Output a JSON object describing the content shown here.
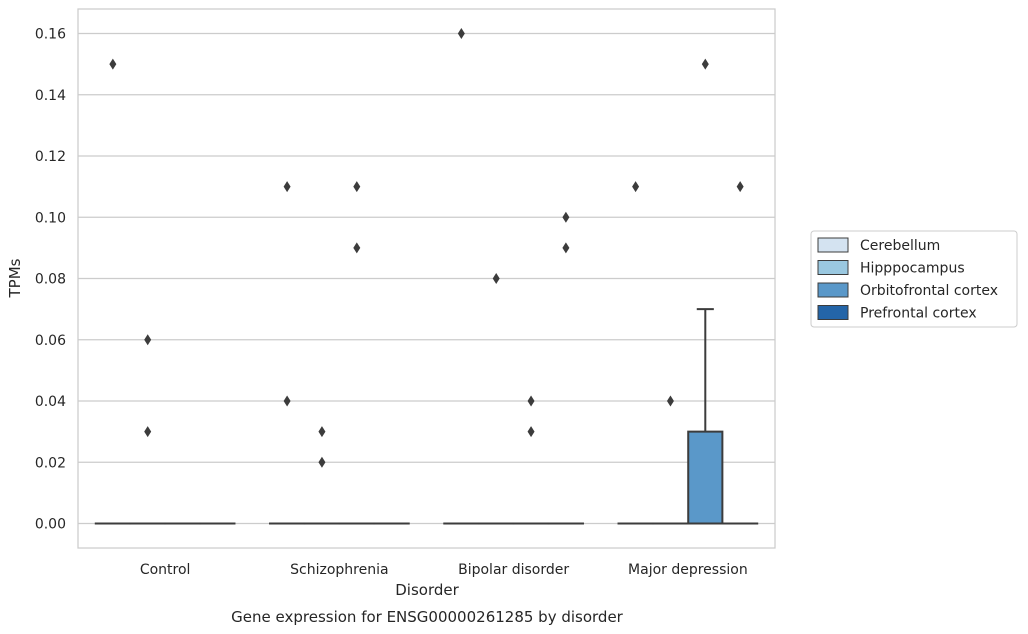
{
  "chart_data": {
    "type": "box",
    "xlabel": "Disorder",
    "ylabel": "TPMs",
    "caption": "Gene expression for ENSG00000261285 by disorder",
    "categories": [
      "Control",
      "Schizophrenia",
      "Bipolar disorder",
      "Major depression"
    ],
    "ylim": [
      -0.008,
      0.168
    ],
    "yticks": [
      0.0,
      0.02,
      0.04,
      0.06,
      0.08,
      0.1,
      0.12,
      0.14,
      0.16
    ],
    "ytick_labels": [
      "0.00",
      "0.02",
      "0.04",
      "0.06",
      "0.08",
      "0.10",
      "0.12",
      "0.14",
      "0.16"
    ],
    "grid": "horizontal",
    "legend_position": "right",
    "series": [
      {
        "name": "Cerebellum",
        "color": "#d4e3f1",
        "boxes": [
          {
            "q1": 0,
            "median": 0,
            "q3": 0,
            "whisker_low": 0,
            "whisker_high": 0,
            "outliers": [
              0.15
            ]
          },
          {
            "q1": 0,
            "median": 0,
            "q3": 0,
            "whisker_low": 0,
            "whisker_high": 0,
            "outliers": [
              0.11,
              0.04
            ]
          },
          {
            "q1": 0,
            "median": 0,
            "q3": 0,
            "whisker_low": 0,
            "whisker_high": 0,
            "outliers": [
              0.16
            ]
          },
          {
            "q1": 0,
            "median": 0,
            "q3": 0,
            "whisker_low": 0,
            "whisker_high": 0,
            "outliers": [
              0.11
            ]
          }
        ]
      },
      {
        "name": "Hipppocampus",
        "color": "#9ac8e0",
        "boxes": [
          {
            "q1": 0,
            "median": 0,
            "q3": 0,
            "whisker_low": 0,
            "whisker_high": 0,
            "outliers": [
              0.06,
              0.03
            ]
          },
          {
            "q1": 0,
            "median": 0,
            "q3": 0,
            "whisker_low": 0,
            "whisker_high": 0,
            "outliers": [
              0.03,
              0.02
            ]
          },
          {
            "q1": 0,
            "median": 0,
            "q3": 0,
            "whisker_low": 0,
            "whisker_high": 0,
            "outliers": [
              0.08
            ]
          },
          {
            "q1": 0,
            "median": 0,
            "q3": 0,
            "whisker_low": 0,
            "whisker_high": 0,
            "outliers": [
              0.04
            ]
          }
        ]
      },
      {
        "name": "Orbitofrontal cortex",
        "color": "#5a98c9",
        "boxes": [
          {
            "q1": 0,
            "median": 0,
            "q3": 0,
            "whisker_low": 0,
            "whisker_high": 0,
            "outliers": []
          },
          {
            "q1": 0,
            "median": 0,
            "q3": 0,
            "whisker_low": 0,
            "whisker_high": 0,
            "outliers": [
              0.11,
              0.09
            ]
          },
          {
            "q1": 0,
            "median": 0,
            "q3": 0,
            "whisker_low": 0,
            "whisker_high": 0,
            "outliers": [
              0.04,
              0.03
            ]
          },
          {
            "q1": 0,
            "median": 0,
            "q3": 0.03,
            "whisker_low": 0,
            "whisker_high": 0.07,
            "outliers": [
              0.15
            ]
          }
        ]
      },
      {
        "name": "Prefrontal cortex",
        "color": "#2465a8",
        "boxes": [
          {
            "q1": 0,
            "median": 0,
            "q3": 0,
            "whisker_low": 0,
            "whisker_high": 0,
            "outliers": []
          },
          {
            "q1": 0,
            "median": 0,
            "q3": 0,
            "whisker_low": 0,
            "whisker_high": 0,
            "outliers": []
          },
          {
            "q1": 0,
            "median": 0,
            "q3": 0,
            "whisker_low": 0,
            "whisker_high": 0,
            "outliers": [
              0.1,
              0.09
            ]
          },
          {
            "q1": 0,
            "median": 0,
            "q3": 0,
            "whisker_low": 0,
            "whisker_high": 0,
            "outliers": [
              0.11
            ]
          }
        ]
      }
    ]
  }
}
